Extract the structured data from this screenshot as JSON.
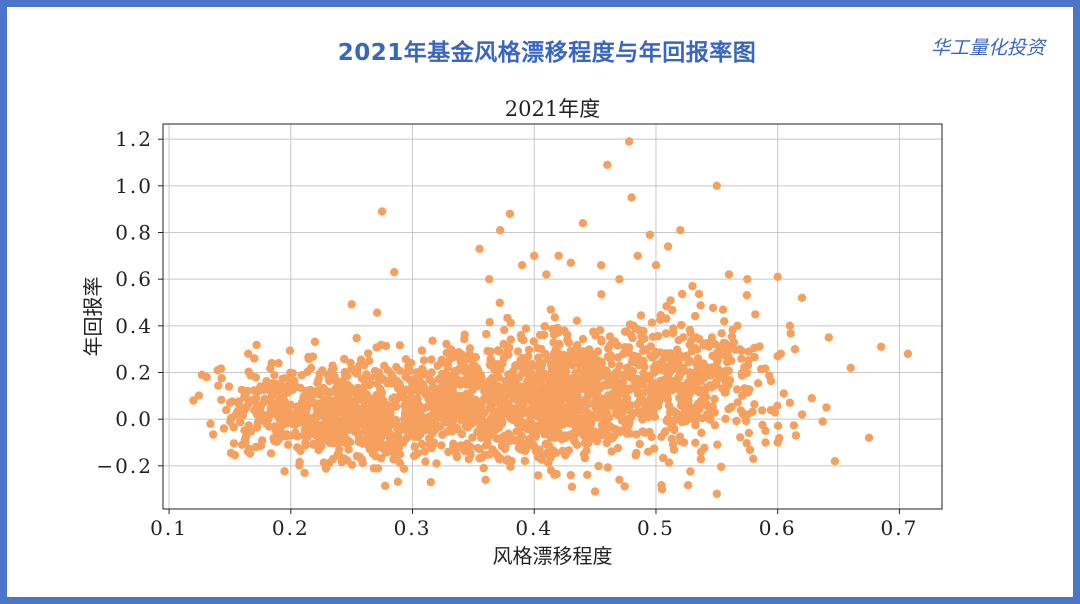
{
  "header": {
    "title": "2021年基金风格漂移程度与年回报率图",
    "brand": "华工量化投资"
  },
  "chart_data": {
    "type": "scatter",
    "title": "2021年度",
    "xlabel": "风格漂移程度",
    "ylabel": "年回报率",
    "xlim": [
      0.095,
      0.735
    ],
    "ylim": [
      -0.385,
      1.265
    ],
    "x_ticks": [
      0.1,
      0.2,
      0.3,
      0.4,
      0.5,
      0.6,
      0.7
    ],
    "x_tick_labels": [
      "0.1",
      "0.2",
      "0.3",
      "0.4",
      "0.5",
      "0.6",
      "0.7"
    ],
    "y_ticks": [
      -0.2,
      0.0,
      0.2,
      0.4,
      0.6,
      0.8,
      1.0,
      1.2
    ],
    "y_tick_labels": [
      "−0.2",
      "0.0",
      "0.2",
      "0.4",
      "0.6",
      "0.8",
      "1.0",
      "1.2"
    ],
    "grid": true,
    "marker_color": "#f5a05e",
    "points": [
      [
        0.12,
        0.08
      ],
      [
        0.127,
        0.19
      ],
      [
        0.131,
        0.18
      ],
      [
        0.134,
        -0.02
      ],
      [
        0.14,
        0.21
      ],
      [
        0.145,
        -0.04
      ],
      [
        0.15,
        0.07
      ],
      [
        0.155,
        0.02
      ],
      [
        0.16,
        -0.11
      ],
      [
        0.165,
        0.28
      ],
      [
        0.17,
        0.26
      ],
      [
        0.175,
        0.14
      ],
      [
        0.18,
        -0.02
      ],
      [
        0.185,
        0.06
      ],
      [
        0.19,
        0.24
      ],
      [
        0.195,
        0.01
      ],
      [
        0.275,
        0.89
      ],
      [
        0.285,
        0.63
      ],
      [
        0.355,
        0.73
      ],
      [
        0.363,
        0.6
      ],
      [
        0.372,
        0.81
      ],
      [
        0.38,
        0.88
      ],
      [
        0.39,
        0.66
      ],
      [
        0.4,
        0.7
      ],
      [
        0.41,
        0.62
      ],
      [
        0.42,
        0.7
      ],
      [
        0.43,
        0.67
      ],
      [
        0.44,
        0.84
      ],
      [
        0.455,
        0.66
      ],
      [
        0.46,
        1.09
      ],
      [
        0.47,
        0.6
      ],
      [
        0.478,
        1.19
      ],
      [
        0.48,
        0.95
      ],
      [
        0.485,
        0.7
      ],
      [
        0.495,
        0.79
      ],
      [
        0.5,
        0.66
      ],
      [
        0.51,
        0.74
      ],
      [
        0.52,
        0.81
      ],
      [
        0.53,
        0.57
      ],
      [
        0.55,
        1.0
      ],
      [
        0.56,
        0.62
      ],
      [
        0.575,
        0.6
      ],
      [
        0.6,
        0.61
      ],
      [
        0.62,
        0.52
      ],
      [
        0.6,
        0.27
      ],
      [
        0.61,
        0.4
      ],
      [
        0.605,
        0.11
      ],
      [
        0.61,
        0.07
      ],
      [
        0.615,
        -0.07
      ],
      [
        0.62,
        0.02
      ],
      [
        0.628,
        0.09
      ],
      [
        0.637,
        -0.01
      ],
      [
        0.64,
        0.05
      ],
      [
        0.642,
        0.35
      ],
      [
        0.647,
        -0.18
      ],
      [
        0.66,
        0.22
      ],
      [
        0.675,
        -0.08
      ],
      [
        0.685,
        0.31
      ],
      [
        0.707,
        0.28
      ],
      [
        0.45,
        -0.31
      ],
      [
        0.55,
        -0.32
      ],
      [
        0.505,
        -0.3
      ],
      [
        0.47,
        -0.26
      ],
      [
        0.43,
        -0.24
      ],
      [
        0.36,
        -0.26
      ],
      [
        0.315,
        -0.27
      ],
      [
        0.58,
        -0.17
      ],
      [
        0.6,
        -0.1
      ],
      [
        0.575,
        0.02
      ],
      [
        0.59,
        -0.05
      ]
    ],
    "clusters": [
      {
        "cx": 0.245,
        "cy": 0.01,
        "sx": 0.035,
        "sy": 0.1,
        "n": 560
      },
      {
        "cx": 0.345,
        "cy": 0.06,
        "sx": 0.045,
        "sy": 0.12,
        "n": 620
      },
      {
        "cx": 0.435,
        "cy": 0.1,
        "sx": 0.045,
        "sy": 0.14,
        "n": 700
      },
      {
        "cx": 0.53,
        "cy": 0.17,
        "sx": 0.035,
        "sy": 0.15,
        "n": 330
      },
      {
        "cx": 0.185,
        "cy": 0.05,
        "sx": 0.025,
        "sy": 0.09,
        "n": 120
      }
    ],
    "seed": 2021
  }
}
